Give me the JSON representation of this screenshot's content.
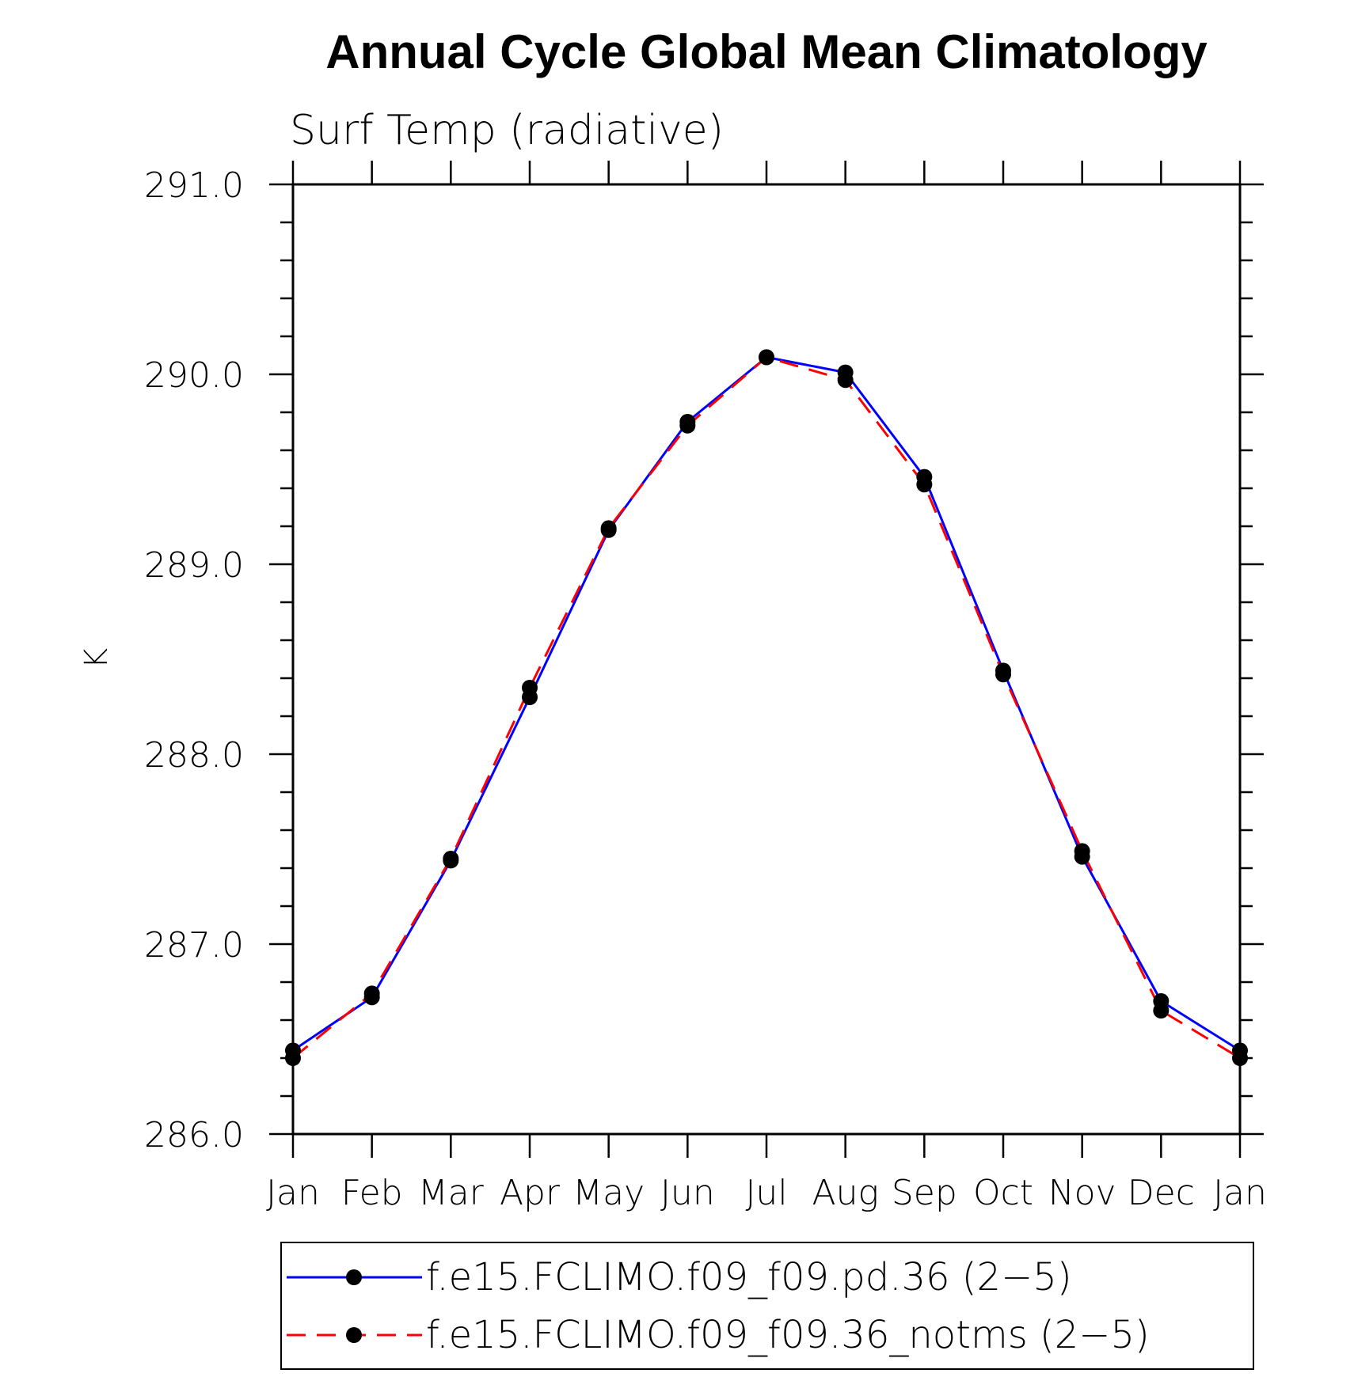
{
  "chart_data": {
    "type": "line",
    "title": "Annual Cycle Global Mean Climatology",
    "subtitle": "Surf Temp (radiative)",
    "xlabel": "",
    "ylabel": "K",
    "ylim": [
      286.0,
      291.0
    ],
    "y_ticks": [
      "286.0",
      "287.0",
      "288.0",
      "289.0",
      "290.0",
      "291.0"
    ],
    "categories": [
      "Jan",
      "Feb",
      "Mar",
      "Apr",
      "May",
      "Jun",
      "Jul",
      "Aug",
      "Sep",
      "Oct",
      "Nov",
      "Dec",
      "Jan"
    ],
    "grid": false,
    "legend_position": "bottom",
    "series": [
      {
        "name": "f.e15.FCLIMO.f09_f09.pd.36 (2−5)",
        "color": "#0000ff",
        "style": "solid",
        "values": [
          286.44,
          286.72,
          287.44,
          288.3,
          289.18,
          289.75,
          290.09,
          290.01,
          289.46,
          288.44,
          287.46,
          286.7,
          286.44
        ]
      },
      {
        "name": "f.e15.FCLIMO.f09_f09.36_notms (2−5)",
        "color": "#ff0000",
        "style": "dashed",
        "values": [
          286.4,
          286.74,
          287.45,
          288.35,
          289.19,
          289.73,
          290.09,
          289.97,
          289.42,
          288.42,
          287.49,
          286.65,
          286.4
        ]
      }
    ]
  }
}
